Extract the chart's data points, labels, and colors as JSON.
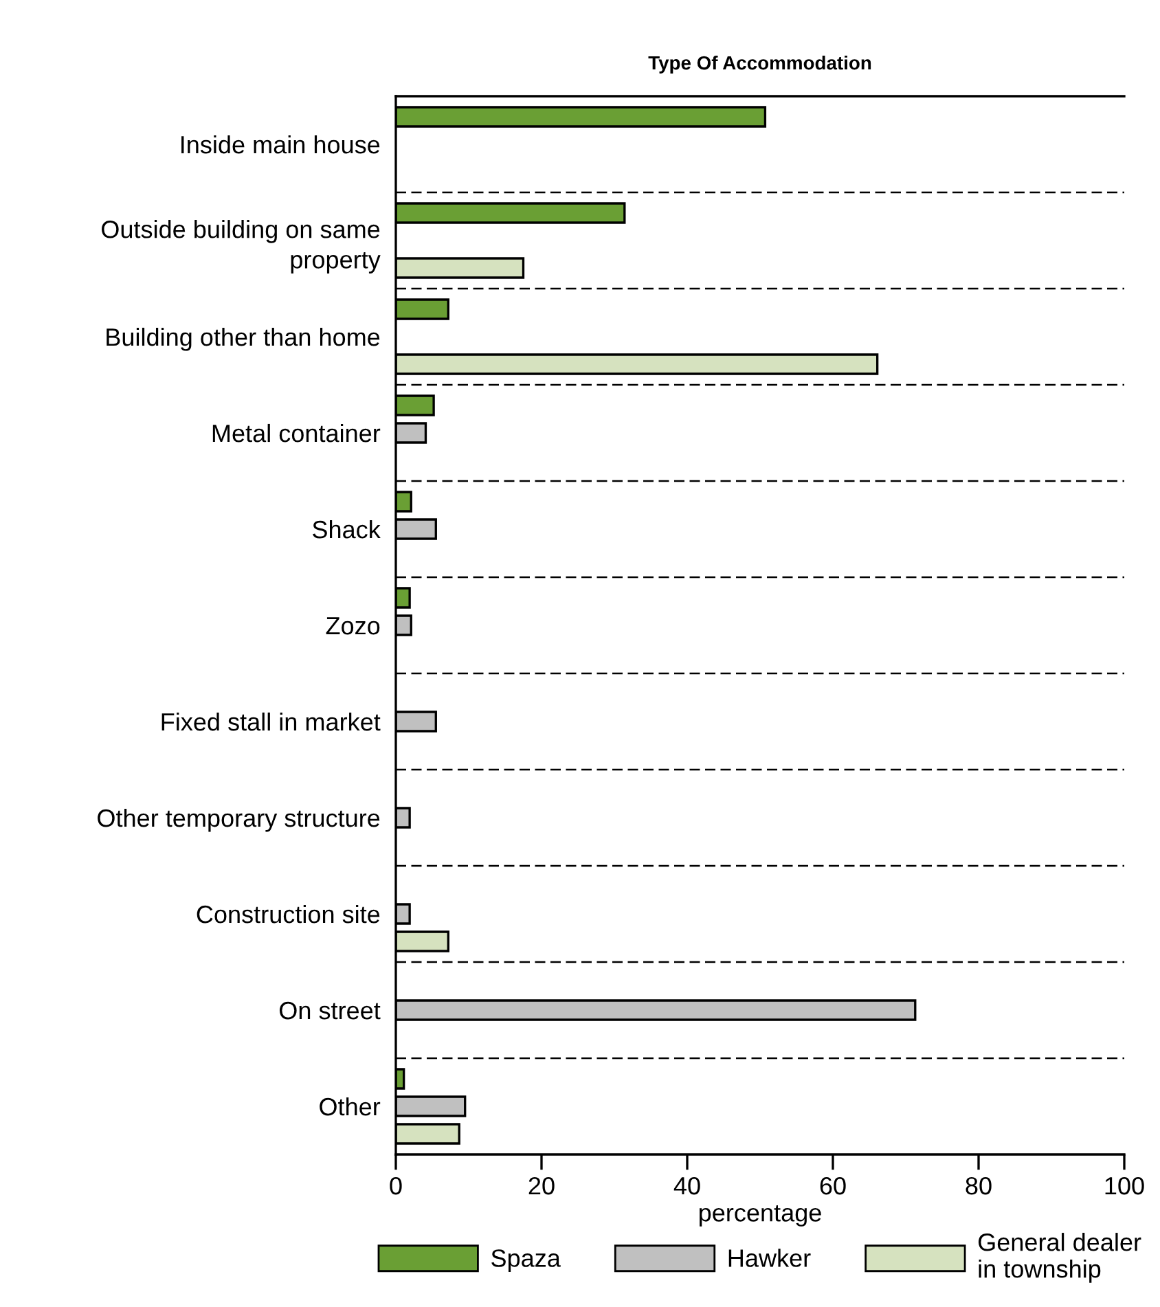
{
  "chart_data": {
    "type": "bar",
    "orientation": "horizontal",
    "title": "Type Of Accommodation",
    "xlabel": "percentage",
    "categories": [
      "Inside main house",
      "Outside building on same\nproperty",
      "Building other than home",
      "Metal container",
      "Shack",
      "Zozo",
      "Fixed stall in market",
      "Other temporary structure",
      "Construction site",
      "On street",
      "Other"
    ],
    "series": [
      {
        "name": "Spaza",
        "color": "#6a9f34",
        "values": [
          50.7,
          31.4,
          7.2,
          5.2,
          2.1,
          1.9,
          null,
          null,
          null,
          null,
          1.1
        ]
      },
      {
        "name": "Hawker",
        "color": "#c0c0c0",
        "values": [
          null,
          null,
          null,
          4.1,
          5.5,
          2.1,
          5.5,
          1.9,
          1.9,
          71.3,
          9.5
        ]
      },
      {
        "name": "General dealer\nin township",
        "color": "#d6e2bf",
        "values": [
          null,
          17.5,
          66.1,
          null,
          null,
          null,
          null,
          null,
          7.2,
          null,
          8.7
        ]
      }
    ],
    "xlim": [
      0,
      100
    ],
    "xticks": [
      0,
      20,
      40,
      60,
      80,
      100
    ],
    "grid": "y",
    "legend": "bottom"
  }
}
